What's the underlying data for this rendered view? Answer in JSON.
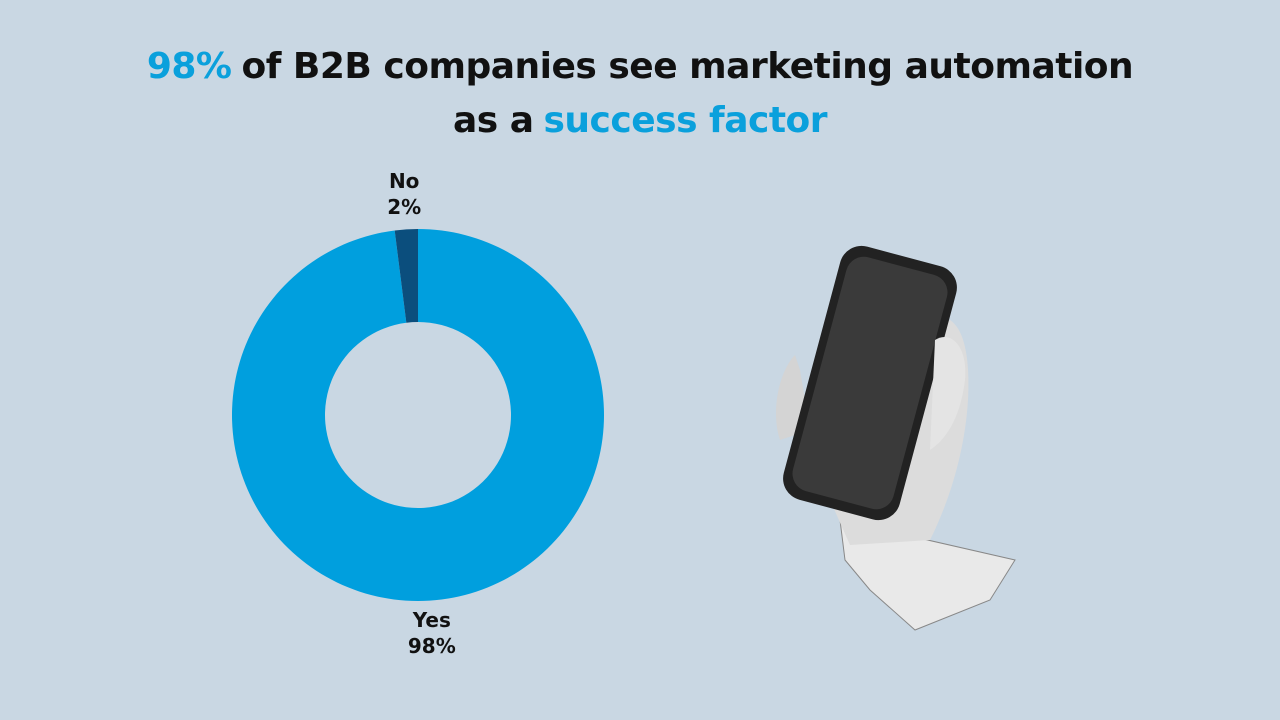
{
  "chart_data": {
    "type": "donut",
    "title": {
      "lines": [
        [
          {
            "text": "98%",
            "color": "#0aa0dc"
          },
          {
            "text": "of B2B companies see marketing automation",
            "color": "#111111"
          }
        ],
        [
          {
            "text": "as a",
            "color": "#111111"
          },
          {
            "text": "success factor",
            "color": "#0aa0dc"
          }
        ]
      ]
    },
    "categories": [
      "Yes",
      "No"
    ],
    "values": [
      98,
      2
    ],
    "value_labels": [
      "98%",
      "2%"
    ],
    "colors": [
      "#009fde",
      "#0b4e7d"
    ]
  }
}
